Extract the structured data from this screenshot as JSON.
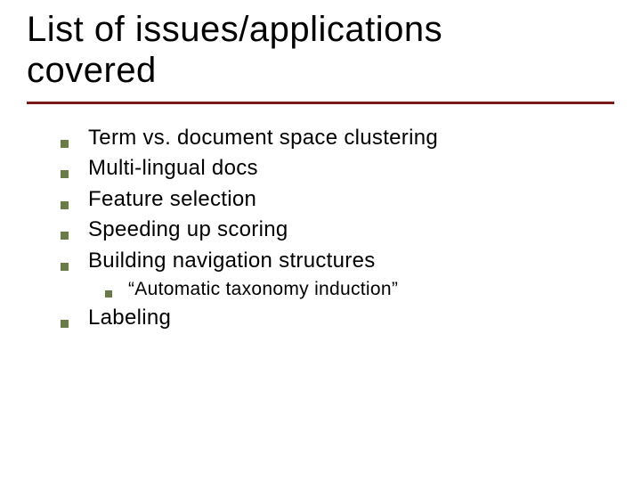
{
  "title_line1": "List of issues/applications",
  "title_line2": "covered",
  "rule_color": "#7a1a1a",
  "bullet_color": "#6b7a4a",
  "background_color": "#ffffff",
  "text_color": "#000000",
  "title_fontsize": 40,
  "body_fontsize": 24,
  "sub_fontsize": 21,
  "items": {
    "i0": "Term vs. document space clustering",
    "i1": "Multi-lingual docs",
    "i2": "Feature selection",
    "i3": "Speeding up scoring",
    "i4": "Building navigation structures",
    "i4_sub0": "“Automatic taxonomy induction”",
    "i5": "Labeling"
  }
}
